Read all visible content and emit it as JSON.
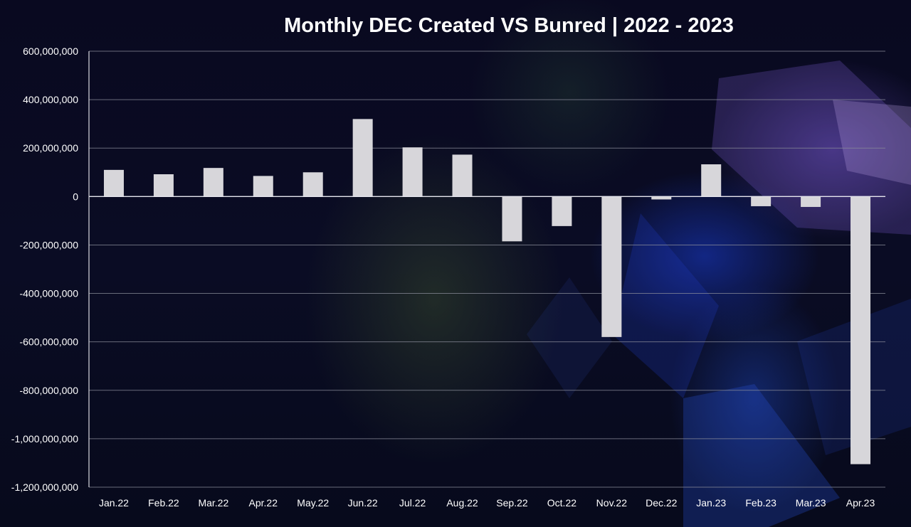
{
  "chart_data": {
    "type": "bar",
    "title": "Monthly DEC Created VS Bunred | 2022 - 2023",
    "xlabel": "",
    "ylabel": "",
    "categories": [
      "Jan.22",
      "Feb.22",
      "Mar.22",
      "Apr.22",
      "May.22",
      "Jun.22",
      "Jul.22",
      "Aug.22",
      "Sep.22",
      "Oct.22",
      "Nov.22",
      "Dec.22",
      "Jan.23",
      "Feb.23",
      "Mar.23",
      "Apr.23"
    ],
    "values": [
      110000000,
      92000000,
      118000000,
      85000000,
      100000000,
      320000000,
      203000000,
      173000000,
      -185000000,
      -122000000,
      -580000000,
      -12000000,
      133000000,
      -40000000,
      -43000000,
      -1105000000
    ],
    "ylim": [
      -1200000000,
      600000000
    ],
    "yticks": [
      600000000,
      400000000,
      200000000,
      0,
      -200000000,
      -400000000,
      -600000000,
      -800000000,
      -1000000000,
      -1200000000
    ],
    "ytick_labels": [
      "600,000,000",
      "400,000,000",
      "200,000,000",
      "0",
      "-200,000,000",
      "-400,000,000",
      "-600,000,000",
      "-800,000,000",
      "-1,000,000,000",
      "-1,200,000,000"
    ],
    "grid": true,
    "legend": "none",
    "bar_color": "#d7d6da",
    "grid_color": "#8a8c99",
    "text_color": "#ffffff"
  }
}
